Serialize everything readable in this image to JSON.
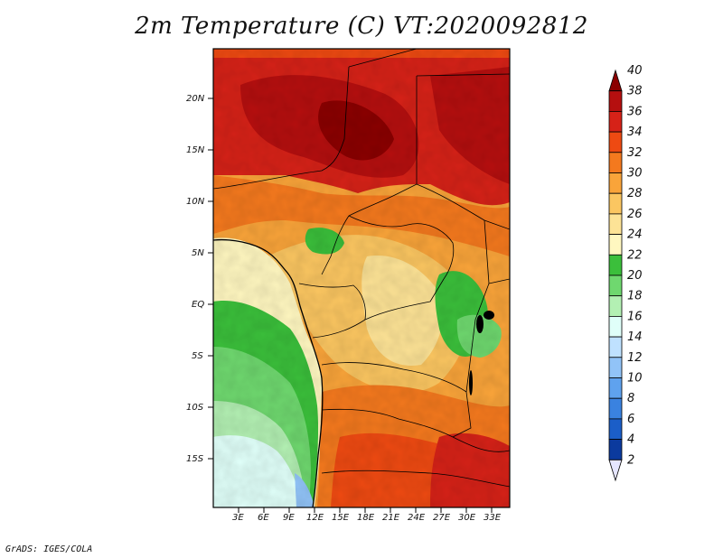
{
  "title": "2m Temperature (C) VT:2020092812",
  "credit": "GrADS: IGES/COLA",
  "map": {
    "lat_labels": [
      "20N",
      "15N",
      "10N",
      "5N",
      "EQ",
      "5S",
      "10S",
      "15S"
    ],
    "lon_labels": [
      "3E",
      "6E",
      "9E",
      "12E",
      "15E",
      "18E",
      "21E",
      "24E",
      "27E",
      "30E",
      "33E"
    ]
  },
  "colorbar": {
    "levels": [
      "40",
      "38",
      "36",
      "34",
      "32",
      "30",
      "28",
      "26",
      "24",
      "22",
      "20",
      "18",
      "16",
      "14",
      "12",
      "10",
      "8",
      "6",
      "4",
      "2"
    ],
    "colors": [
      "#8b0000",
      "#b50f0f",
      "#d62218",
      "#ee4a12",
      "#f4791e",
      "#f9a43a",
      "#fbc661",
      "#fde396",
      "#fff7c0",
      "#3bbf3b",
      "#6fd86f",
      "#b3f0b3",
      "#e0fff9",
      "#bfe1ff",
      "#91c3f7",
      "#5fa2ee",
      "#3a82e0",
      "#1b5ec8",
      "#0b3a9e",
      "#0a1668"
    ]
  }
}
